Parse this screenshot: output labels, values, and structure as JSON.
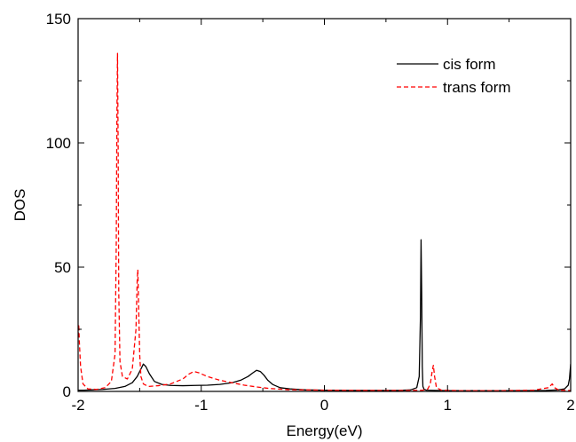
{
  "chart_data": {
    "type": "line",
    "xlabel": "Energy(eV)",
    "ylabel": "DOS",
    "xlim": [
      -2,
      2
    ],
    "ylim": [
      0,
      150
    ],
    "xticks": [
      -2,
      -1,
      0,
      1,
      2
    ],
    "yticks": [
      0,
      50,
      100,
      150
    ],
    "grid": false,
    "legend_position": "top-right",
    "series": [
      {
        "name": "cis form",
        "color": "#000000",
        "style": "solid",
        "x": [
          -2.0,
          -1.95,
          -1.9,
          -1.8,
          -1.7,
          -1.62,
          -1.56,
          -1.52,
          -1.49,
          -1.47,
          -1.45,
          -1.42,
          -1.38,
          -1.32,
          -1.25,
          -1.15,
          -1.05,
          -0.95,
          -0.85,
          -0.75,
          -0.68,
          -0.62,
          -0.58,
          -0.55,
          -0.52,
          -0.49,
          -0.46,
          -0.42,
          -0.36,
          -0.28,
          -0.15,
          0.0,
          0.2,
          0.4,
          0.6,
          0.7,
          0.75,
          0.77,
          0.78,
          0.785,
          0.79,
          0.795,
          0.8,
          0.81,
          0.83,
          0.9,
          1.0,
          1.2,
          1.4,
          1.6,
          1.8,
          1.9,
          1.95,
          1.98,
          1.99,
          2.0
        ],
        "y": [
          0.5,
          0.5,
          0.6,
          0.8,
          1.2,
          2.0,
          3.5,
          6.0,
          9.0,
          11.0,
          10.0,
          7.0,
          4.0,
          2.8,
          2.4,
          2.3,
          2.4,
          2.5,
          2.8,
          3.5,
          4.5,
          6.0,
          7.5,
          8.5,
          8.0,
          6.5,
          4.5,
          2.8,
          1.5,
          1.0,
          0.6,
          0.5,
          0.4,
          0.4,
          0.4,
          0.6,
          1.5,
          6.0,
          30.0,
          61.0,
          40.0,
          10.0,
          2.0,
          0.8,
          0.5,
          0.4,
          0.3,
          0.3,
          0.3,
          0.3,
          0.4,
          0.6,
          1.0,
          2.5,
          5.0,
          11.0
        ]
      },
      {
        "name": "trans form",
        "color": "#ff0000",
        "style": "dashed",
        "x": [
          -2.0,
          -1.995,
          -1.99,
          -1.98,
          -1.96,
          -1.92,
          -1.85,
          -1.78,
          -1.73,
          -1.7,
          -1.69,
          -1.685,
          -1.68,
          -1.675,
          -1.67,
          -1.66,
          -1.64,
          -1.6,
          -1.56,
          -1.53,
          -1.52,
          -1.515,
          -1.51,
          -1.5,
          -1.49,
          -1.47,
          -1.43,
          -1.35,
          -1.25,
          -1.15,
          -1.1,
          -1.06,
          -1.02,
          -0.95,
          -0.85,
          -0.75,
          -0.65,
          -0.55,
          -0.45,
          -0.3,
          0.0,
          0.4,
          0.7,
          0.8,
          0.84,
          0.86,
          0.875,
          0.885,
          0.895,
          0.91,
          0.95,
          1.1,
          1.4,
          1.7,
          1.82,
          1.85,
          1.87,
          1.9,
          1.95,
          2.0
        ],
        "y": [
          22.0,
          27.0,
          20.0,
          10.0,
          3.0,
          1.0,
          0.8,
          1.5,
          4.0,
          15.0,
          60.0,
          110.0,
          136.0,
          100.0,
          40.0,
          12.0,
          6.0,
          5.0,
          9.0,
          25.0,
          45.0,
          49.0,
          38.0,
          15.0,
          6.0,
          3.0,
          2.0,
          2.3,
          3.0,
          5.0,
          7.0,
          8.0,
          7.5,
          6.0,
          4.5,
          3.5,
          2.5,
          1.8,
          1.2,
          0.7,
          0.5,
          0.4,
          0.4,
          0.5,
          1.0,
          3.0,
          8.0,
          10.5,
          6.0,
          1.5,
          0.5,
          0.3,
          0.3,
          0.5,
          1.5,
          3.0,
          1.5,
          0.6,
          0.4,
          0.4
        ]
      }
    ]
  }
}
